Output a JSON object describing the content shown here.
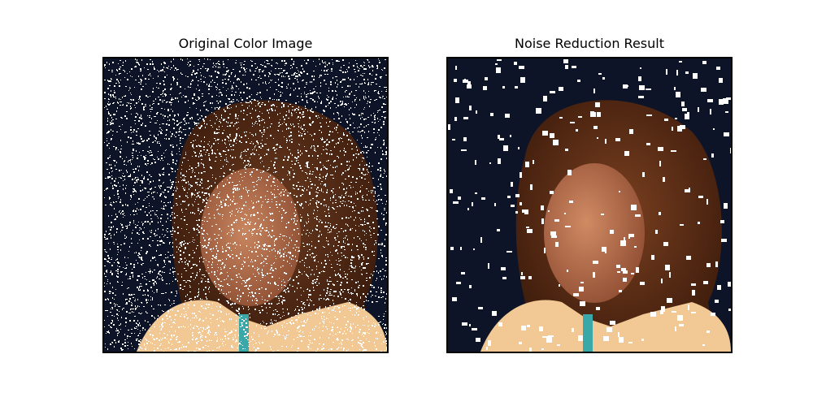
{
  "panels": [
    {
      "title": "Original Color Image"
    },
    {
      "title": "Noise Reduction Result"
    }
  ],
  "colors": {
    "background": "#0e1428",
    "hair": "#4a2312",
    "skin": "#b06a48",
    "shirt": "#f2c995",
    "necklace": "#3aa7a8",
    "noise": "#ffffff",
    "frame": "#000000"
  }
}
